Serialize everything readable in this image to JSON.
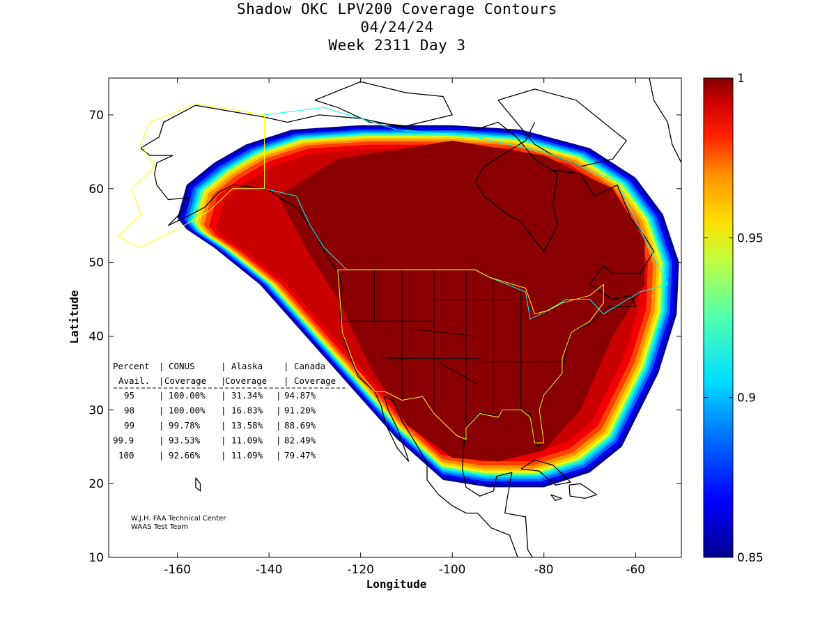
{
  "chart_data": {
    "type": "heatmap",
    "title": "Shadow OKC LPV200 Coverage Contours",
    "subtitle_lines": [
      "04/24/24",
      "Week 2311 Day 3"
    ],
    "xlabel": "Longitude",
    "ylabel": "Latitude",
    "xlim": [
      -175,
      -50
    ],
    "ylim": [
      10,
      75
    ],
    "xticks": [
      -160,
      -140,
      -120,
      -100,
      -80,
      -60
    ],
    "yticks": [
      10,
      20,
      30,
      40,
      50,
      60,
      70
    ],
    "colorbar": {
      "range": [
        0.85,
        1
      ],
      "ticks": [
        {
          "value": 1,
          "label": "1"
        },
        {
          "value": 0.95,
          "label": "0.95"
        },
        {
          "value": 0.9,
          "label": "0.9"
        },
        {
          "value": 0.85,
          "label": "0.85"
        }
      ],
      "colormap": "jet"
    },
    "coverage_region": {
      "outer_boundary_lonlat": [
        [
          -160,
          56
        ],
        [
          -158,
          60.5
        ],
        [
          -152,
          63.5
        ],
        [
          -145,
          66
        ],
        [
          -135,
          68
        ],
        [
          -120,
          68.6
        ],
        [
          -100,
          68.6
        ],
        [
          -85,
          68
        ],
        [
          -70,
          65.5
        ],
        [
          -60,
          61.5
        ],
        [
          -54,
          56.5
        ],
        [
          -50.5,
          50
        ],
        [
          -51,
          43
        ],
        [
          -55,
          35
        ],
        [
          -63,
          25
        ],
        [
          -70,
          21.5
        ],
        [
          -80,
          19.5
        ],
        [
          -92,
          19.5
        ],
        [
          -102,
          20.5
        ],
        [
          -112,
          26
        ],
        [
          -122,
          33
        ],
        [
          -132,
          40
        ],
        [
          -142,
          47
        ],
        [
          -152,
          52
        ],
        [
          -158,
          54.5
        ]
      ],
      "core_region_lonlat": [
        [
          -138,
          59
        ],
        [
          -125,
          64
        ],
        [
          -100,
          66.5
        ],
        [
          -80,
          64.5
        ],
        [
          -65,
          60
        ],
        [
          -58,
          53
        ],
        [
          -58,
          47
        ],
        [
          -65,
          40
        ],
        [
          -72,
          30
        ],
        [
          -80,
          24.5
        ],
        [
          -90,
          23
        ],
        [
          -100,
          23.5
        ],
        [
          -110,
          28
        ],
        [
          -118,
          36
        ],
        [
          -125,
          45
        ],
        [
          -132,
          52
        ]
      ],
      "min_value": 0.85,
      "max_value": 1
    },
    "table": {
      "header_row1": [
        "Percent",
        "CONUS",
        "Alaska",
        "Canada"
      ],
      "header_row2": [
        "Avail.",
        "Coverage",
        "Coverage",
        "Coverage"
      ],
      "rows": [
        {
          "percent": "95",
          "conus": "100.00%",
          "alaska": "31.34%",
          "canada": "94.87%"
        },
        {
          "percent": "98",
          "conus": "100.00%",
          "alaska": "16.83%",
          "canada": "91.20%"
        },
        {
          "percent": "99",
          "conus": "99.78%",
          "alaska": "13.58%",
          "canada": "88.69%"
        },
        {
          "percent": "99.9",
          "conus": "93.53%",
          "alaska": "11.09%",
          "canada": "82.49%"
        },
        {
          "percent": "100",
          "conus": "92.66%",
          "alaska": "11.09%",
          "canada": "79.47%"
        }
      ]
    },
    "credits": [
      "W.J.H. FAA Technical Center",
      "WAAS Test Team"
    ],
    "boundaries": {
      "alaska_yellow_lonlat": [
        [
          -141,
          70
        ],
        [
          -156,
          71.5
        ],
        [
          -166,
          69
        ],
        [
          -168,
          66
        ],
        [
          -165,
          63
        ],
        [
          -170,
          60
        ],
        [
          -168,
          56.5
        ],
        [
          -173,
          53.5
        ],
        [
          -168,
          52
        ],
        [
          -160,
          54.5
        ],
        [
          -153,
          57
        ],
        [
          -148,
          60
        ],
        [
          -141,
          60
        ]
      ],
      "canada_cyan_lonlat": [
        [
          -141,
          70
        ],
        [
          -128,
          71
        ],
        [
          -112,
          68
        ],
        [
          -95,
          67
        ],
        [
          -80,
          65
        ],
        [
          -64,
          61
        ],
        [
          -61,
          57
        ],
        [
          -57,
          52
        ],
        [
          -53,
          47
        ],
        [
          -59,
          46
        ],
        [
          -67,
          43
        ],
        [
          -70,
          45
        ],
        [
          -75,
          45
        ],
        [
          -80,
          43.2
        ],
        [
          -83,
          42.3
        ],
        [
          -84,
          46
        ],
        [
          -92,
          48
        ],
        [
          -95,
          49
        ],
        [
          -123,
          49
        ],
        [
          -128,
          52
        ],
        [
          -131,
          55
        ],
        [
          -134,
          59
        ],
        [
          -141,
          60
        ]
      ],
      "conus_yellow_lonlat": [
        [
          -125,
          49
        ],
        [
          -95,
          49
        ],
        [
          -92,
          48
        ],
        [
          -84,
          46.5
        ],
        [
          -82,
          43
        ],
        [
          -79,
          43.5
        ],
        [
          -76,
          44.5
        ],
        [
          -70,
          45.5
        ],
        [
          -67,
          47
        ],
        [
          -67,
          44.5
        ],
        [
          -70,
          42
        ],
        [
          -74,
          40.5
        ],
        [
          -76,
          37
        ],
        [
          -76,
          35
        ],
        [
          -80,
          32
        ],
        [
          -81,
          30
        ],
        [
          -80,
          25.5
        ],
        [
          -82,
          25.5
        ],
        [
          -83,
          29
        ],
        [
          -85,
          30
        ],
        [
          -89,
          30
        ],
        [
          -90,
          29
        ],
        [
          -94,
          29.5
        ],
        [
          -97,
          27.5
        ],
        [
          -97,
          26
        ],
        [
          -99,
          26.5
        ],
        [
          -104,
          29.5
        ],
        [
          -106.5,
          31.8
        ],
        [
          -111,
          31.3
        ],
        [
          -114.8,
          32.5
        ],
        [
          -117,
          32.5
        ],
        [
          -119.5,
          34.5
        ],
        [
          -121,
          35.5
        ],
        [
          -124,
          40.5
        ],
        [
          -124.5,
          45
        ]
      ]
    }
  }
}
